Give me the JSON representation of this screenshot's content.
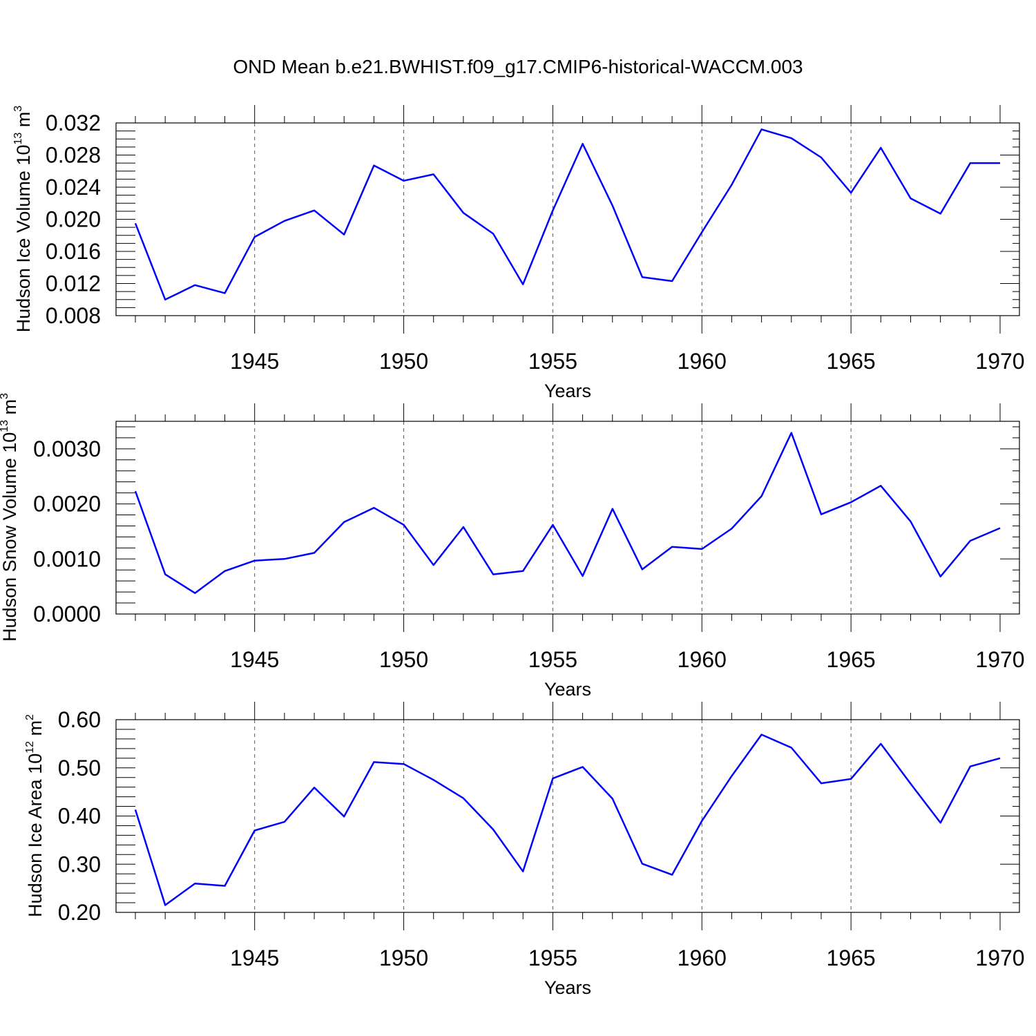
{
  "chart_title": "OND Mean b.e21.BWHIST.f09_g17.CMIP6-historical-WACCM.003",
  "line_color": "#0000ff",
  "chart_data": [
    {
      "type": "line",
      "ylabel_main": "Hudson Ice Volume 10",
      "ylabel_exp": "13",
      "ylabel_unit": "m",
      "ylabel_unit_exp": "3",
      "xlabel": "Years",
      "xlim": [
        1941,
        1970
      ],
      "ylim": [
        0.008,
        0.032
      ],
      "yticks": [
        "0.008",
        "0.012",
        "0.016",
        "0.020",
        "0.024",
        "0.028",
        "0.032"
      ],
      "xticks": [
        "1945",
        "1950",
        "1955",
        "1960",
        "1965",
        "1970"
      ],
      "x": [
        1941,
        1942,
        1943,
        1944,
        1945,
        1946,
        1947,
        1948,
        1949,
        1950,
        1951,
        1952,
        1953,
        1954,
        1955,
        1956,
        1957,
        1958,
        1959,
        1960,
        1961,
        1962,
        1963,
        1964,
        1965,
        1966,
        1967,
        1968,
        1969,
        1970
      ],
      "values": [
        0.0195,
        0.01,
        0.0118,
        0.0108,
        0.0178,
        0.0198,
        0.0211,
        0.0181,
        0.0267,
        0.0248,
        0.0256,
        0.0208,
        0.0182,
        0.0119,
        0.0211,
        0.0294,
        0.0217,
        0.0128,
        0.0123,
        0.0184,
        0.0243,
        0.0312,
        0.0301,
        0.0277,
        0.0233,
        0.0289,
        0.0226,
        0.0207,
        0.027,
        0.027
      ]
    },
    {
      "type": "line",
      "ylabel_main": "Hudson Snow Volume 10",
      "ylabel_exp": "13",
      "ylabel_unit": "m",
      "ylabel_unit_exp": "3",
      "xlabel": "Years",
      "xlim": [
        1941,
        1970
      ],
      "ylim": [
        0.0,
        0.0035
      ],
      "yticks": [
        "0.0000",
        "0.0010",
        "0.0020",
        "0.0030"
      ],
      "xticks": [
        "1945",
        "1950",
        "1955",
        "1960",
        "1965",
        "1970"
      ],
      "x": [
        1941,
        1942,
        1943,
        1944,
        1945,
        1946,
        1947,
        1948,
        1949,
        1950,
        1951,
        1952,
        1953,
        1954,
        1955,
        1956,
        1957,
        1958,
        1959,
        1960,
        1961,
        1962,
        1963,
        1964,
        1965,
        1966,
        1967,
        1968,
        1969,
        1970
      ],
      "values": [
        0.00223,
        0.00072,
        0.00038,
        0.00078,
        0.00097,
        0.001,
        0.00111,
        0.00167,
        0.00193,
        0.00162,
        0.00089,
        0.00158,
        0.00072,
        0.00078,
        0.00162,
        0.00069,
        0.00191,
        0.00081,
        0.00122,
        0.00118,
        0.00155,
        0.00214,
        0.00329,
        0.00181,
        0.00203,
        0.00233,
        0.00168,
        0.00068,
        0.00133,
        0.00156
      ]
    },
    {
      "type": "line",
      "ylabel_main": "Hudson Ice Area 10",
      "ylabel_exp": "12",
      "ylabel_unit": "m",
      "ylabel_unit_exp": "2",
      "xlabel": "Years",
      "xlim": [
        1941,
        1970
      ],
      "ylim": [
        0.2,
        0.6
      ],
      "yticks": [
        "0.20",
        "0.30",
        "0.40",
        "0.50",
        "0.60"
      ],
      "xticks": [
        "1945",
        "1950",
        "1955",
        "1960",
        "1965",
        "1970"
      ],
      "x": [
        1941,
        1942,
        1943,
        1944,
        1945,
        1946,
        1947,
        1948,
        1949,
        1950,
        1951,
        1952,
        1953,
        1954,
        1955,
        1956,
        1957,
        1958,
        1959,
        1960,
        1961,
        1962,
        1963,
        1964,
        1965,
        1966,
        1967,
        1968,
        1969,
        1970
      ],
      "values": [
        0.413,
        0.215,
        0.26,
        0.255,
        0.37,
        0.388,
        0.459,
        0.399,
        0.512,
        0.508,
        0.475,
        0.437,
        0.372,
        0.285,
        0.478,
        0.502,
        0.436,
        0.301,
        0.278,
        0.39,
        0.483,
        0.569,
        0.542,
        0.468,
        0.477,
        0.55,
        0.467,
        0.386,
        0.503,
        0.52
      ]
    }
  ]
}
